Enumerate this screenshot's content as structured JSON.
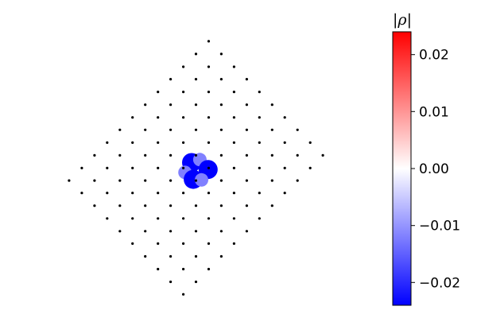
{
  "chart_data": {
    "type": "scatter",
    "title": "",
    "xlabel": "",
    "ylabel": "",
    "grid": false,
    "description_note": "",
    "sites": [
      [
        -2.0,
        0.0
      ],
      [
        -1.77,
        0.43
      ],
      [
        -1.54,
        0.87
      ],
      [
        -1.31,
        1.31
      ],
      [
        -1.08,
        1.75
      ],
      [
        -0.85,
        2.18
      ],
      [
        -0.62,
        2.62
      ],
      [
        -0.39,
        3.06
      ],
      [
        -0.16,
        3.5
      ],
      [
        0.07,
        3.93
      ],
      [
        0.3,
        4.37
      ],
      [
        0.53,
        4.81
      ],
      [
        -1.77,
        -0.43
      ],
      [
        -1.54,
        0.0
      ],
      [
        -1.31,
        0.43
      ],
      [
        -1.08,
        0.87
      ],
      [
        -0.85,
        1.31
      ],
      [
        -0.62,
        1.75
      ],
      [
        -0.39,
        2.18
      ],
      [
        -0.16,
        2.62
      ],
      [
        0.07,
        3.06
      ],
      [
        0.3,
        3.5
      ],
      [
        0.53,
        3.93
      ],
      [
        0.76,
        4.37
      ],
      [
        -1.54,
        -0.87
      ],
      [
        -1.31,
        -0.43
      ],
      [
        -1.08,
        0.0
      ],
      [
        -0.85,
        0.43
      ],
      [
        -0.62,
        0.87
      ],
      [
        -0.39,
        1.31
      ],
      [
        -0.16,
        1.75
      ],
      [
        0.07,
        2.18
      ],
      [
        0.3,
        2.62
      ],
      [
        0.53,
        3.06
      ],
      [
        0.76,
        3.5
      ],
      [
        0.99,
        3.93
      ],
      [
        -1.31,
        -1.31
      ],
      [
        -1.08,
        -0.87
      ],
      [
        -0.85,
        -0.43
      ],
      [
        -0.62,
        0.0
      ],
      [
        -0.39,
        0.43
      ],
      [
        -0.16,
        0.87
      ],
      [
        0.07,
        1.31
      ],
      [
        0.3,
        1.75
      ],
      [
        0.53,
        2.18
      ],
      [
        0.76,
        2.62
      ],
      [
        0.99,
        3.06
      ],
      [
        1.22,
        3.5
      ],
      [
        -1.08,
        -1.75
      ],
      [
        -0.85,
        -1.31
      ],
      [
        -0.62,
        -0.87
      ],
      [
        -0.39,
        -0.43
      ],
      [
        -0.16,
        0.0
      ],
      [
        0.07,
        0.43
      ],
      [
        0.3,
        0.87
      ],
      [
        0.53,
        1.31
      ],
      [
        0.76,
        1.75
      ],
      [
        0.99,
        2.18
      ],
      [
        1.22,
        2.62
      ],
      [
        1.45,
        3.06
      ],
      [
        -0.85,
        -2.18
      ],
      [
        -0.62,
        -1.75
      ],
      [
        -0.39,
        -1.31
      ],
      [
        -0.16,
        -0.87
      ],
      [
        0.07,
        -0.43
      ],
      [
        0.3,
        0.0
      ],
      [
        0.53,
        0.43
      ],
      [
        0.76,
        0.87
      ],
      [
        0.99,
        1.31
      ],
      [
        1.22,
        1.75
      ],
      [
        1.45,
        2.18
      ],
      [
        1.68,
        2.62
      ],
      [
        -0.62,
        -2.62
      ],
      [
        -0.39,
        -2.18
      ],
      [
        -0.16,
        -1.75
      ],
      [
        0.07,
        -1.31
      ],
      [
        0.3,
        -0.87
      ],
      [
        0.53,
        -0.43
      ],
      [
        0.76,
        0.0
      ],
      [
        0.99,
        0.43
      ],
      [
        1.22,
        0.87
      ],
      [
        1.45,
        1.31
      ],
      [
        1.68,
        1.75
      ],
      [
        1.91,
        2.18
      ],
      [
        -0.39,
        -3.06
      ],
      [
        -0.16,
        -2.62
      ],
      [
        0.07,
        -2.18
      ],
      [
        0.3,
        -1.75
      ],
      [
        0.53,
        -1.31
      ],
      [
        0.76,
        -0.87
      ],
      [
        0.99,
        -0.43
      ],
      [
        1.22,
        0.0
      ],
      [
        1.45,
        0.43
      ],
      [
        1.68,
        0.87
      ],
      [
        1.91,
        1.31
      ],
      [
        2.14,
        1.75
      ],
      [
        -0.16,
        -3.5
      ],
      [
        0.07,
        -3.06
      ],
      [
        0.3,
        -2.62
      ],
      [
        0.53,
        -2.18
      ],
      [
        0.76,
        -1.75
      ],
      [
        0.99,
        -1.31
      ],
      [
        1.22,
        -0.87
      ],
      [
        1.45,
        -0.43
      ],
      [
        1.68,
        0.0
      ],
      [
        1.91,
        0.43
      ],
      [
        2.14,
        0.87
      ],
      [
        2.37,
        1.31
      ],
      [
        0.07,
        -3.93
      ],
      [
        0.3,
        -3.5
      ],
      [
        0.53,
        -3.06
      ],
      [
        0.76,
        -2.62
      ],
      [
        0.99,
        -2.18
      ],
      [
        1.22,
        -1.75
      ],
      [
        1.45,
        -1.31
      ],
      [
        1.68,
        -0.87
      ],
      [
        1.91,
        -0.43
      ],
      [
        2.14,
        0.0
      ],
      [
        2.37,
        0.43
      ],
      [
        2.6,
        0.87
      ]
    ],
    "density_markers": [
      {
        "x": 0.22,
        "y": 0.62,
        "value": -0.024
      },
      {
        "x": 0.37,
        "y": 0.72,
        "value": -0.012
      },
      {
        "x": 0.52,
        "y": 0.38,
        "value": -0.024
      },
      {
        "x": 0.1,
        "y": 0.28,
        "value": -0.012
      },
      {
        "x": 0.25,
        "y": 0.04,
        "value": -0.024
      },
      {
        "x": 0.4,
        "y": 0.02,
        "value": -0.012
      }
    ],
    "xlim": [
      -2.1,
      2.8
    ],
    "ylim": [
      -4.2,
      5.0
    ],
    "colorbar": {
      "label": "|ρ|",
      "vmin": -0.024,
      "vmax": 0.024,
      "colormap": "bwr",
      "ticks": [
        0.02,
        0.01,
        0.0,
        -0.01,
        -0.02
      ],
      "tick_labels": [
        "0.02",
        "0.01",
        "0.00",
        "−0.01",
        "−0.02"
      ],
      "placement": "right"
    },
    "colors": {
      "site": "#000000",
      "neg": "#0000ff",
      "zero": "#ffffff",
      "pos": "#ff0000"
    }
  }
}
